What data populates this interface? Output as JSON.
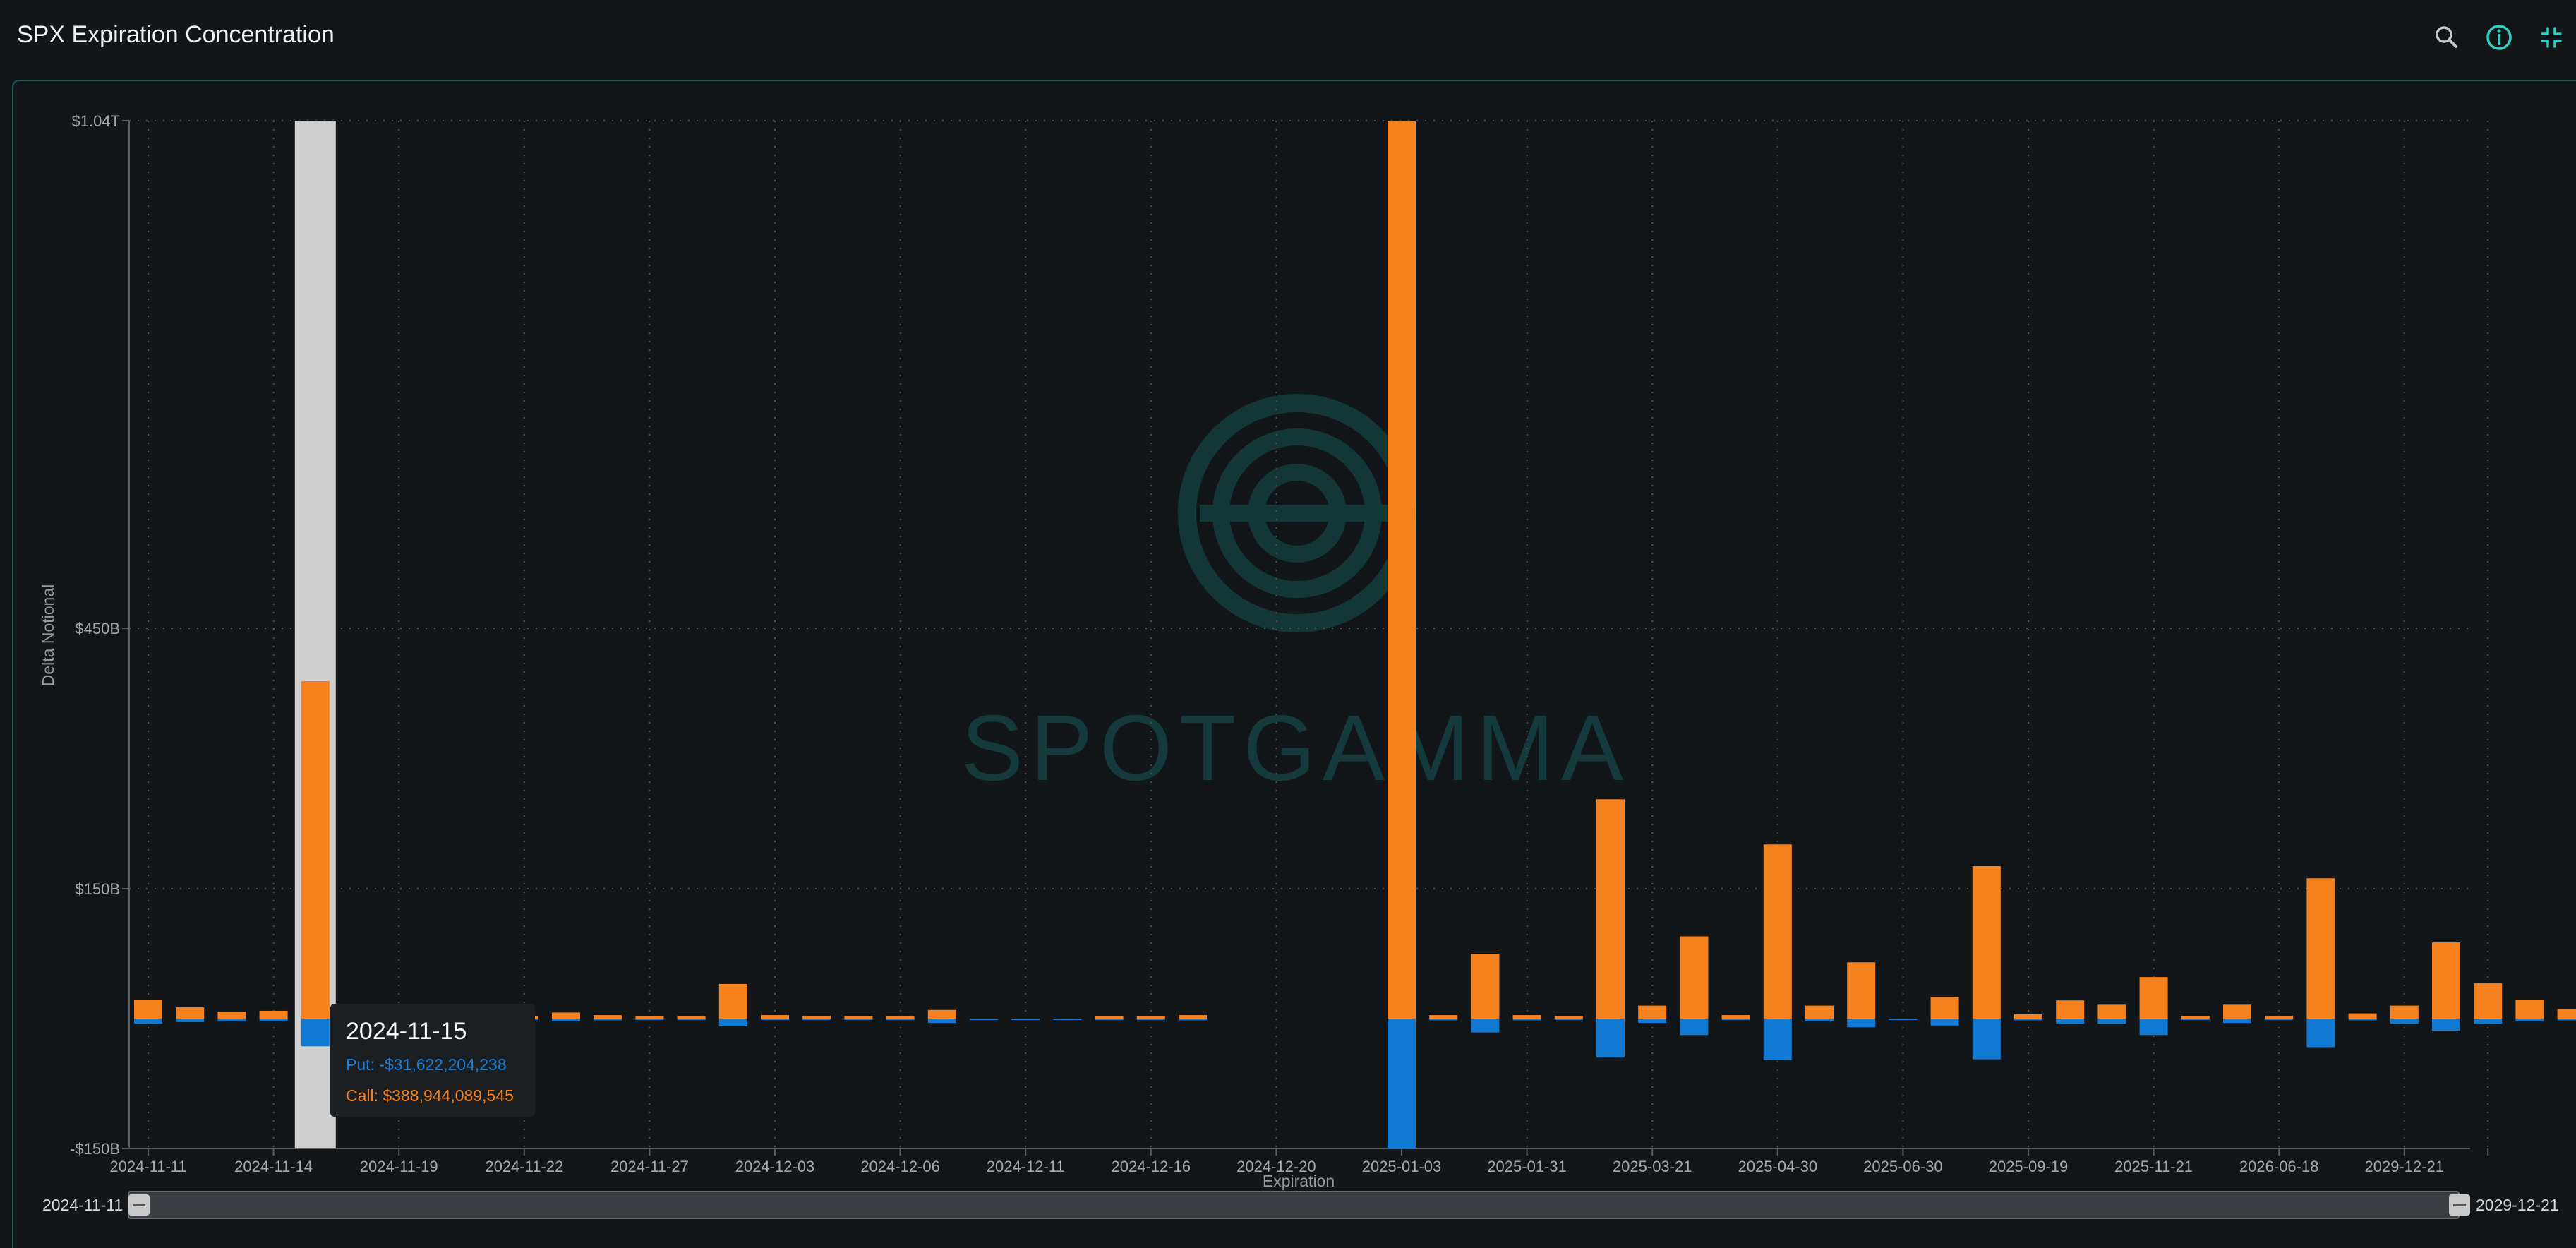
{
  "header": {
    "title": "SPX Expiration Concentration",
    "icons": [
      "search-icon",
      "info-icon",
      "collapse-icon"
    ]
  },
  "watermark": {
    "text": "SPOTGAMMA"
  },
  "tooltip": {
    "date": "2024-11-15",
    "put_text": "Put: -$31,622,204,238",
    "call_text": "Call: $388,944,089,545"
  },
  "range": {
    "start": "2024-11-11",
    "end": "2029-12-21"
  },
  "colors": {
    "call": "#f5821f",
    "put": "#0f79d4",
    "highlight": "#cfcfcf",
    "axis": "#5a5f63",
    "grid": "#4a4f53",
    "panel_border": "#1e5d58"
  },
  "chart_data": {
    "type": "bar",
    "stacked": true,
    "xlabel": "Expiration",
    "ylabel": "Delta Notional",
    "ylim": [
      -150,
      1040
    ],
    "y_unit": "billions USD",
    "ytick_values": [
      -150,
      150,
      450,
      1040
    ],
    "ytick_labels": [
      "-$150B",
      "$150B",
      "$450B",
      "$1.04T"
    ],
    "xtick_indices": [
      0,
      3,
      6,
      9,
      12,
      15,
      18,
      21,
      24,
      27,
      30,
      33,
      36,
      39,
      42,
      45,
      48,
      51,
      54,
      56
    ],
    "xtick_labels": [
      "2024-11-11",
      "2024-11-14",
      "2024-11-19",
      "2024-11-22",
      "2024-11-27",
      "2024-12-03",
      "2024-12-06",
      "2024-12-11",
      "2024-12-16",
      "2024-12-20",
      "2025-01-03",
      "2025-01-31",
      "2025-03-21",
      "2025-04-30",
      "2025-06-30",
      "2025-09-19",
      "2025-11-21",
      "2026-06-18",
      "2029-12-21",
      ""
    ],
    "highlight_index": 4,
    "grid": true,
    "legend": "none",
    "series": [
      {
        "name": "Call",
        "values": [
          22,
          13,
          8,
          9,
          389,
          1,
          1,
          1,
          1,
          2,
          7,
          4,
          2,
          3,
          40,
          4,
          3,
          3,
          3,
          10,
          0,
          0,
          0,
          1,
          1,
          4,
          0,
          0,
          0,
          0,
          1040,
          4,
          75,
          4,
          3,
          253,
          15,
          95,
          4,
          201,
          15,
          65,
          0,
          25,
          176,
          5,
          21,
          16,
          48,
          3,
          16,
          3,
          162,
          6,
          15,
          88,
          41,
          22,
          11
        ]
      },
      {
        "name": "Put",
        "values": [
          -6,
          -4,
          -3,
          -3,
          -32,
          -1,
          -1,
          -1,
          -1,
          -1,
          -3,
          -2,
          -1,
          -1,
          -9,
          -1,
          -1,
          -1,
          -1,
          -5,
          -1,
          -1,
          -1,
          -1,
          -1,
          -2,
          0,
          0,
          0,
          0,
          -150,
          -2,
          -16,
          -2,
          -1,
          -45,
          -5,
          -19,
          -1,
          -48,
          -3,
          -10,
          -1,
          -8,
          -47,
          -2,
          -6,
          -6,
          -19,
          -1,
          -5,
          -1,
          -33,
          -2,
          -6,
          -14,
          -6,
          -3,
          -2
        ]
      }
    ]
  }
}
